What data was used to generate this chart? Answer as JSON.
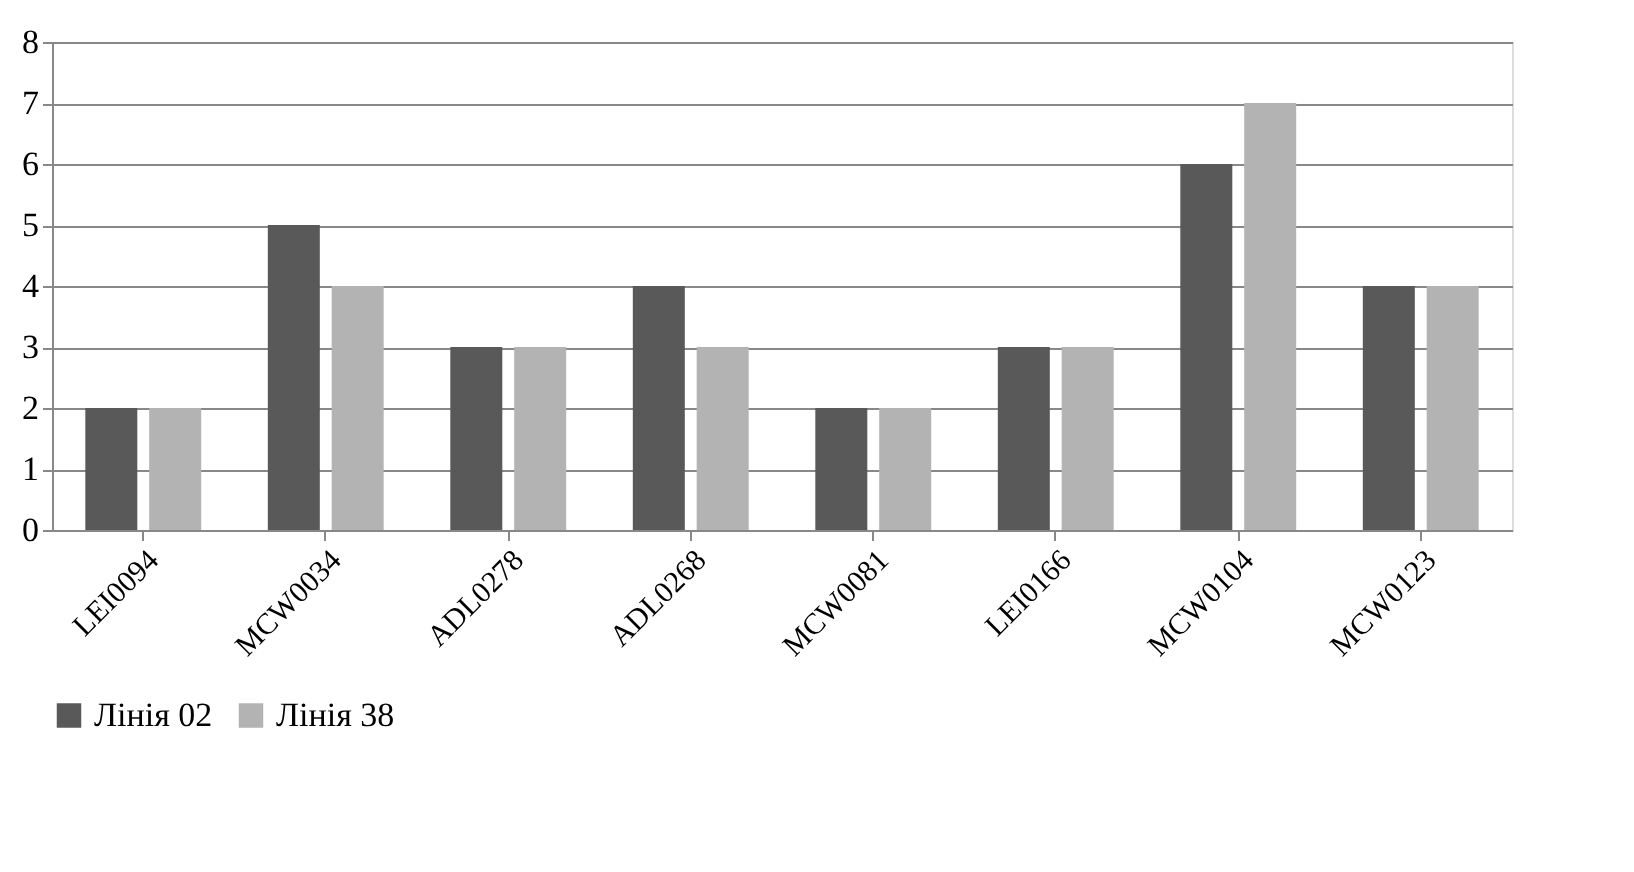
{
  "chart_data": {
    "type": "bar",
    "categories": [
      "LEI0094",
      "MCW0034",
      "ADL0278",
      "ADL0268",
      "MCW0081",
      "LEI0166",
      "MCW0104",
      "MCW0123"
    ],
    "series": [
      {
        "name": "Лінія 02",
        "color": "#595959",
        "values": [
          2,
          5,
          3,
          4,
          2,
          3,
          6,
          4
        ]
      },
      {
        "name": "Лінія 38",
        "color": "#b3b3b3",
        "values": [
          2,
          4,
          3,
          3,
          2,
          3,
          7,
          4
        ]
      }
    ],
    "ylim": [
      0,
      8
    ],
    "yticks": [
      0,
      1,
      2,
      3,
      4,
      5,
      6,
      7,
      8
    ],
    "grid": "y",
    "legend": "bottom"
  }
}
